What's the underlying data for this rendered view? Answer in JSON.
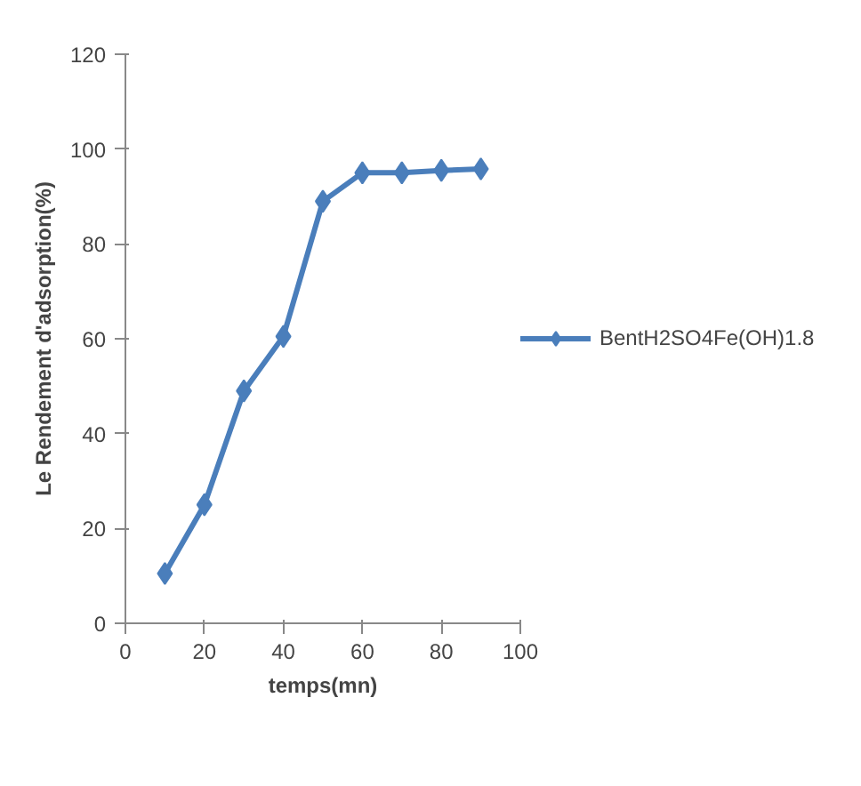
{
  "chart_data": {
    "type": "line",
    "xlabel": "temps(mn)",
    "ylabel": "Le Rendement d'adsorption(%)",
    "x": [
      10,
      20,
      30,
      40,
      50,
      60,
      70,
      80,
      90
    ],
    "series": [
      {
        "name": "BentH2SO4Fe(OH)1.8",
        "color": "#4a7ebb",
        "values": [
          10.5,
          25,
          49,
          60.5,
          89,
          95,
          95,
          95.5,
          95.8
        ]
      }
    ],
    "xlim": [
      0,
      100
    ],
    "xticks": [
      0,
      20,
      40,
      60,
      80,
      100
    ],
    "ylim": [
      0,
      120
    ],
    "yticks": [
      0,
      20,
      40,
      60,
      80,
      100,
      120
    ],
    "grid": false,
    "legend": "right",
    "marker": "diamond",
    "line_style": "solid"
  }
}
